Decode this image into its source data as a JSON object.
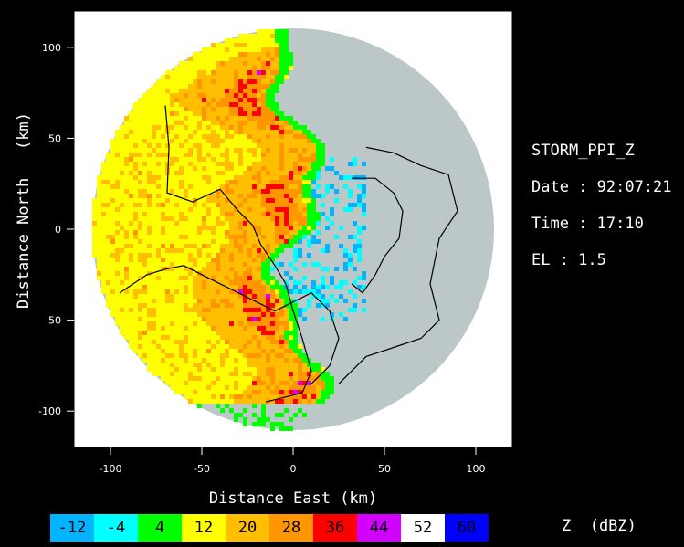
{
  "chart_data": {
    "type": "heatmap",
    "title": "STORM_PPI_Z",
    "xlabel": "Distance East   (km)",
    "ylabel": "Distance North   (km)",
    "xlim": [
      -120,
      120
    ],
    "ylim": [
      -120,
      120
    ],
    "x_ticks": [
      -100,
      -50,
      0,
      50,
      100
    ],
    "y_ticks": [
      100,
      50,
      0,
      -50,
      -100
    ],
    "radar_range_km": 120,
    "background_color": "#bcc8c8",
    "colorbar": {
      "label": "Z  (dBZ)",
      "levels": [
        {
          "value": "-12",
          "color": "#00b4ff"
        },
        {
          "value": "-4",
          "color": "#00ffff"
        },
        {
          "value": "4",
          "color": "#00ff00"
        },
        {
          "value": "12",
          "color": "#ffff00"
        },
        {
          "value": "20",
          "color": "#ffbe00"
        },
        {
          "value": "28",
          "color": "#ff9600"
        },
        {
          "value": "36",
          "color": "#ff0000"
        },
        {
          "value": "44",
          "color": "#d200ff"
        },
        {
          "value": "52",
          "color": "#ffffff"
        },
        {
          "value": "60",
          "color": "#0000ff"
        }
      ]
    }
  },
  "info": {
    "name": "STORM_PPI_Z",
    "date_label": "Date : 92:07:21",
    "time_label": "Time : 17:10",
    "el_label": "EL : 1.5"
  }
}
